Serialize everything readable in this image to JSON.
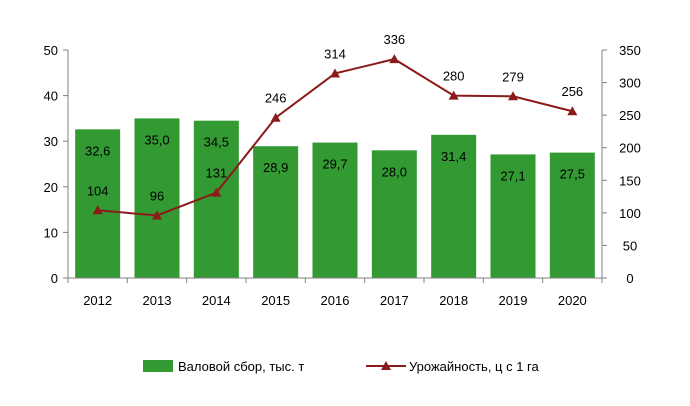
{
  "chart_data": {
    "type": "bar",
    "title": "",
    "xlabel": "",
    "ylabel": "",
    "categories": [
      "2012",
      "2013",
      "2014",
      "2015",
      "2016",
      "2017",
      "2018",
      "2019",
      "2020"
    ],
    "series": [
      {
        "name": "Валовой сбор, тыс. т",
        "type": "bar",
        "axis": "left",
        "values": [
          32.6,
          35.0,
          34.5,
          28.9,
          29.7,
          28.0,
          31.4,
          27.1,
          27.5
        ],
        "labels": [
          "32,6",
          "35,0",
          "34,5",
          "28,9",
          "29,7",
          "28,0",
          "31,4",
          "27,1",
          "27,5"
        ],
        "color": "#339933"
      },
      {
        "name": "Урожайность, ц с 1 га",
        "type": "line",
        "axis": "right",
        "values": [
          104,
          96,
          131,
          246,
          314,
          336,
          280,
          279,
          256
        ],
        "labels": [
          "104",
          "96",
          "131",
          "246",
          "314",
          "336",
          "280",
          "279",
          "256"
        ],
        "color": "#8b1a1a"
      }
    ],
    "ylim_left": [
      0,
      50
    ],
    "yticks_left": [
      "0",
      "10",
      "20",
      "30",
      "40",
      "50"
    ],
    "ylim_right": [
      0,
      350
    ],
    "yticks_right": [
      "0",
      "50",
      "100",
      "150",
      "200",
      "250",
      "300",
      "350"
    ],
    "grid": false,
    "legend_position": "bottom"
  }
}
